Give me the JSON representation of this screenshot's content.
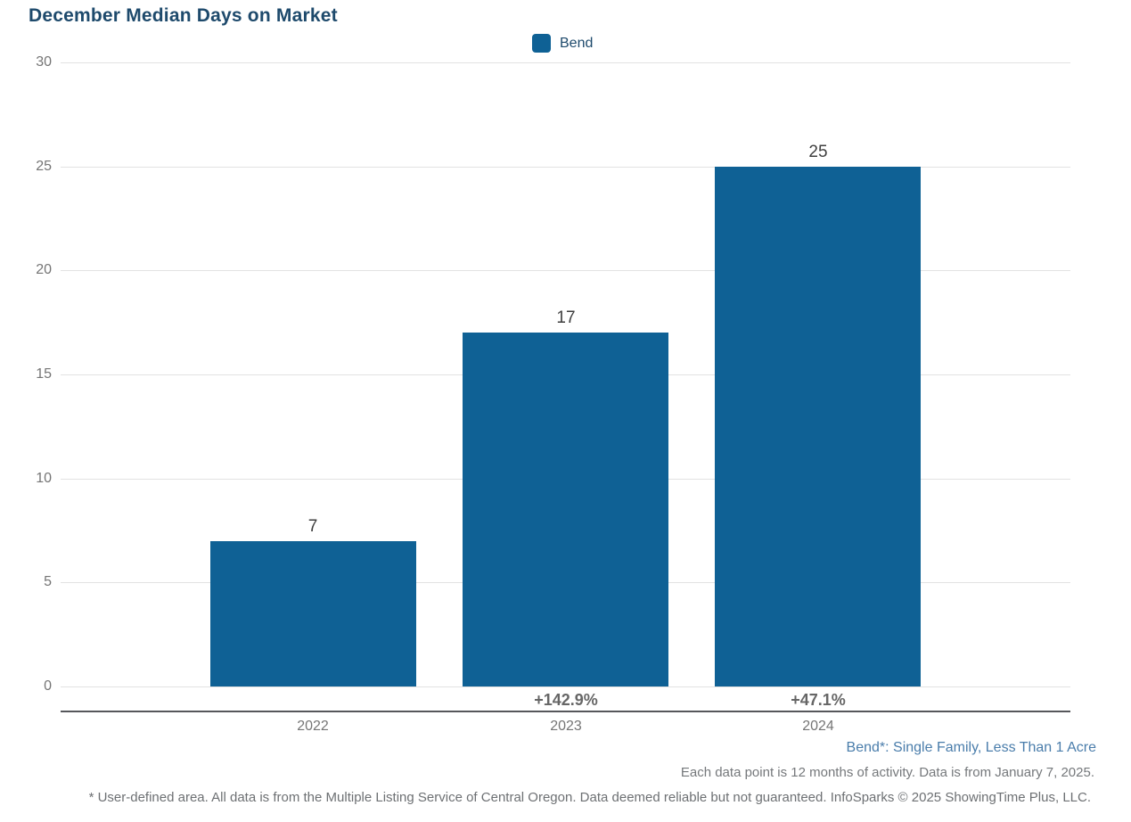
{
  "title": "December Median Days on Market",
  "legend": {
    "label": "Bend",
    "color": "#0f6195"
  },
  "chart_data": {
    "type": "bar",
    "title": "December Median Days on Market",
    "categories": [
      "2022",
      "2023",
      "2024"
    ],
    "series": [
      {
        "name": "Bend",
        "values": [
          7,
          17,
          25
        ]
      }
    ],
    "value_labels": [
      "7",
      "17",
      "25"
    ],
    "pct_change_labels": [
      "",
      "+142.9%",
      "+47.1%"
    ],
    "xlabel": "",
    "ylabel": "",
    "ylim": [
      0,
      30
    ],
    "ytick_step": 5,
    "ytick_labels": [
      "0",
      "5",
      "10",
      "15",
      "20",
      "25",
      "30"
    ],
    "grid": "horizontal",
    "legend_position": "top-center",
    "bar_color": "#0f6195"
  },
  "colors": {
    "bar": "#0f6195",
    "title_text": "#1e4a6c",
    "segment_note_text": "#4a7dab",
    "axis_text": "#757575",
    "value_label_text": "#3f3f3f",
    "pct_label_text": "#666666",
    "gridline": "#e2e2e2",
    "axis_line": "#56575b"
  },
  "footnotes": {
    "segment_note": "Bend*: Single Family, Less Than 1 Acre",
    "data_note": "Each data point is 12 months of activity. Data is from January 7, 2025.",
    "disclaimer": "* User-defined area. All data is from the Multiple Listing Service of Central Oregon. Data deemed reliable but not guaranteed. InfoSparks © 2025 ShowingTime Plus, LLC."
  }
}
